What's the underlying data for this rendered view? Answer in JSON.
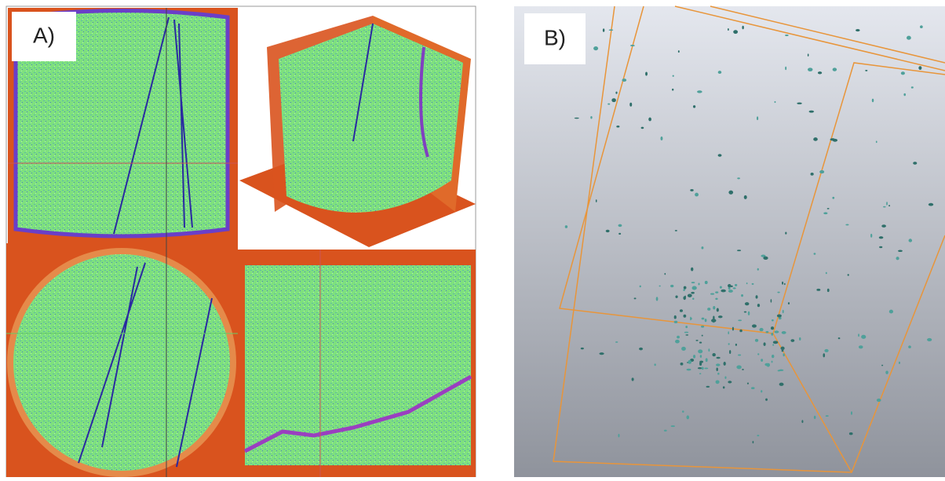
{
  "panels": [
    {
      "label": "A)"
    },
    {
      "label": "B)"
    }
  ]
}
